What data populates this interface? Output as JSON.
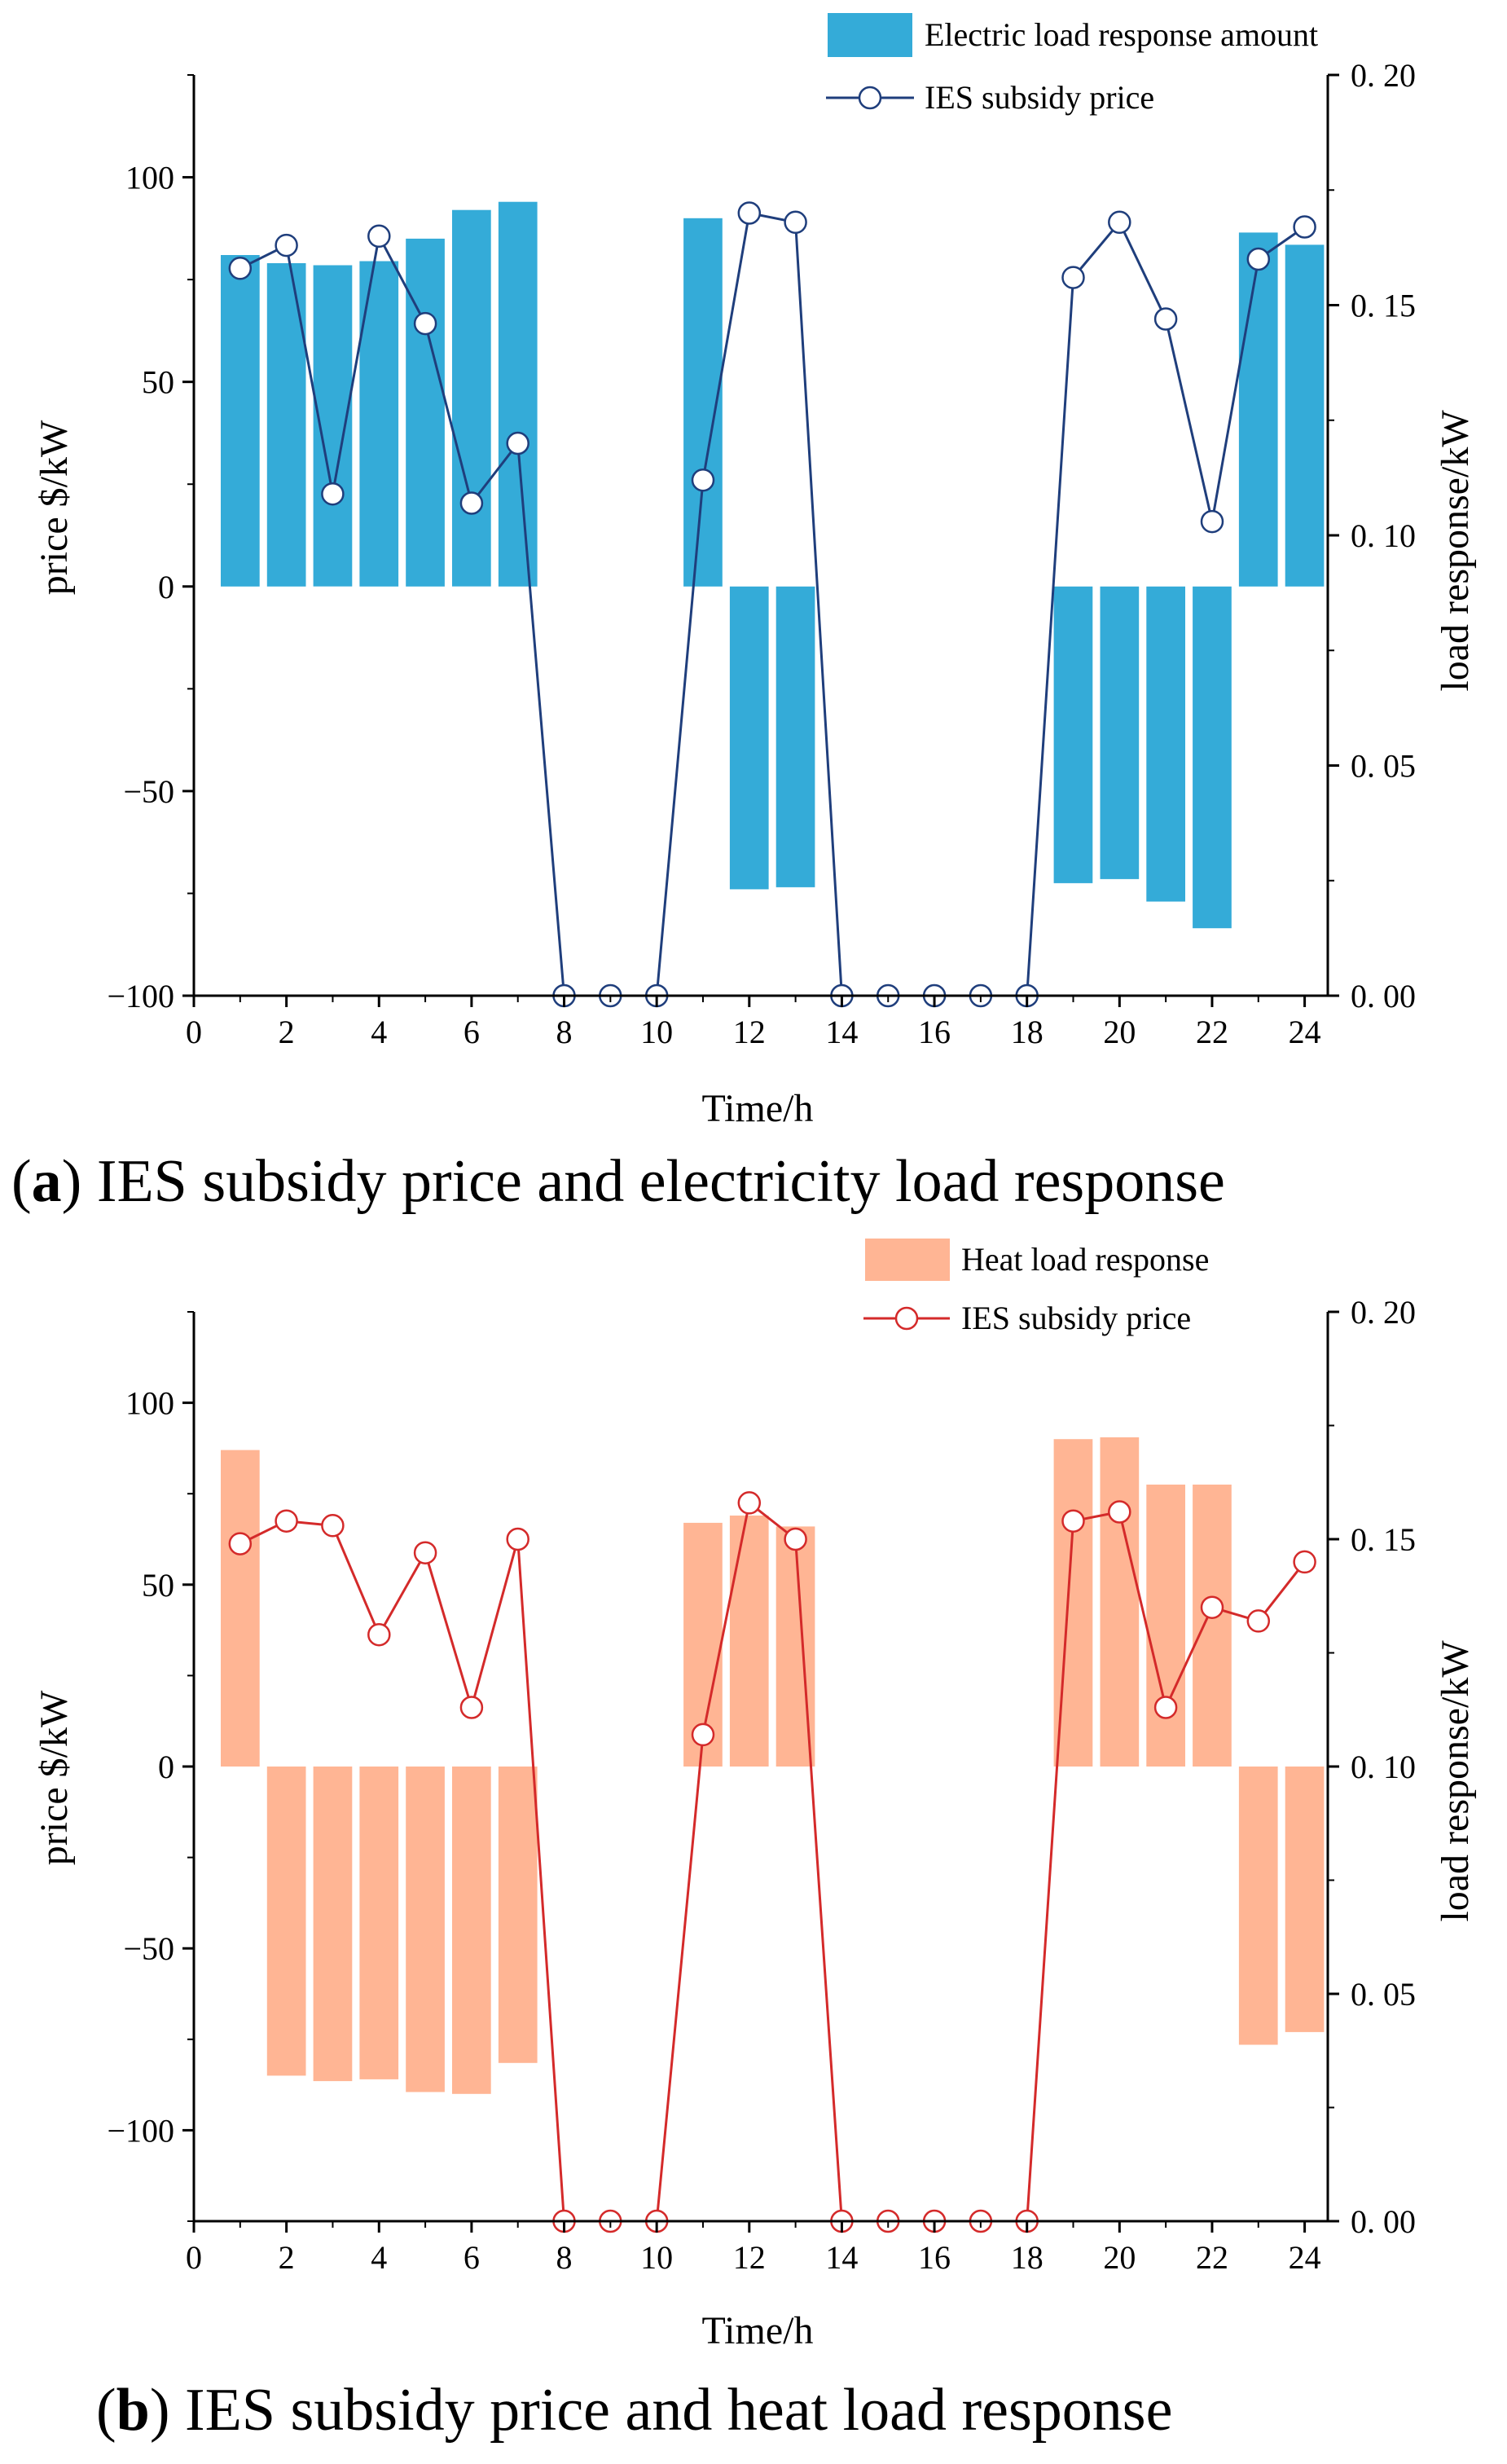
{
  "chart_data": [
    {
      "type": "bar+line",
      "panel": "a",
      "caption_label": "a",
      "caption_open": "(",
      "caption_close": ")",
      "caption_text": " IES subsidy price and electricity load response",
      "xlabel": "Time/h",
      "ylabel_left": "price $/kW",
      "ylabel_right": "load response/kW",
      "xlim": [
        0,
        24.5
      ],
      "ylim_left": [
        -100,
        125
      ],
      "ylim_right": [
        0,
        0.2
      ],
      "x_ticks": [
        "0",
        "2",
        "4",
        "6",
        "8",
        "10",
        "12",
        "14",
        "16",
        "18",
        "20",
        "22",
        "24"
      ],
      "y_left_ticks": [
        "100",
        "50",
        "0",
        "−50",
        "−100"
      ],
      "y_right_ticks": [
        "0. 20",
        "0. 15",
        "0. 10",
        "0. 05",
        "0. 00"
      ],
      "bar_color": "#34ABD8",
      "line_color": "#1F3E7C",
      "legend": [
        {
          "label": "Electric load response amount",
          "kind": "bar"
        },
        {
          "label": "IES subsidy price",
          "kind": "line"
        }
      ],
      "bars": {
        "name": "Electric load response amount",
        "x": [
          1,
          2,
          3,
          4,
          5,
          6,
          7,
          8,
          9,
          10,
          11,
          12,
          13,
          14,
          15,
          16,
          17,
          18,
          19,
          20,
          21,
          22,
          23,
          24
        ],
        "values": [
          81,
          79,
          78.5,
          79.5,
          85,
          92,
          94,
          0,
          0,
          0,
          90,
          -74,
          -73.5,
          0,
          0,
          0,
          0,
          0,
          -72.5,
          -71.5,
          -77,
          -83.5,
          86.5,
          83.5
        ]
      },
      "line": {
        "name": "IES subsidy price",
        "x": [
          1,
          2,
          3,
          4,
          5,
          6,
          7,
          8,
          9,
          10,
          11,
          12,
          13,
          14,
          15,
          16,
          17,
          18,
          19,
          20,
          21,
          22,
          23,
          24
        ],
        "values": [
          0.158,
          0.163,
          0.109,
          0.165,
          0.146,
          0.107,
          0.12,
          0,
          0,
          0,
          0.112,
          0.17,
          0.168,
          0,
          0,
          0,
          0,
          0,
          0.156,
          0.168,
          0.147,
          0.103,
          0.16,
          0.167
        ]
      }
    },
    {
      "type": "bar+line",
      "panel": "b",
      "caption_label": "b",
      "caption_open": "(",
      "caption_close": ")",
      "caption_text": " IES subsidy price and heat load response",
      "xlabel": "Time/h",
      "ylabel_left": "price $/kW",
      "ylabel_right": "load response/kW",
      "xlim": [
        0,
        24.5
      ],
      "ylim_left": [
        -125,
        125
      ],
      "ylim_right": [
        0,
        0.2
      ],
      "x_ticks": [
        "0",
        "2",
        "4",
        "6",
        "8",
        "10",
        "12",
        "14",
        "16",
        "18",
        "20",
        "22",
        "24"
      ],
      "y_left_ticks": [
        "100",
        "50",
        "0",
        "−50",
        "−100"
      ],
      "y_right_ticks": [
        "0. 20",
        "0. 15",
        "0. 10",
        "0. 05",
        "0. 00"
      ],
      "bar_color": "#FFB594",
      "line_color": "#D42A2A",
      "legend": [
        {
          "label": "Heat load response",
          "kind": "bar"
        },
        {
          "label": "IES subsidy price",
          "kind": "line"
        }
      ],
      "bars": {
        "name": "Heat load response",
        "x": [
          1,
          2,
          3,
          4,
          5,
          6,
          7,
          8,
          9,
          10,
          11,
          12,
          13,
          14,
          15,
          16,
          17,
          18,
          19,
          20,
          21,
          22,
          23,
          24
        ],
        "values": [
          87,
          -85,
          -86.5,
          -86,
          -89.5,
          -90,
          -81.5,
          0,
          0,
          0,
          67,
          69,
          66,
          0,
          0,
          0,
          0,
          0,
          90,
          90.5,
          77.5,
          77.5,
          -76.5,
          -73
        ]
      },
      "line": {
        "name": "IES subsidy price",
        "x": [
          1,
          2,
          3,
          4,
          5,
          6,
          7,
          8,
          9,
          10,
          11,
          12,
          13,
          14,
          15,
          16,
          17,
          18,
          19,
          20,
          21,
          22,
          23,
          24
        ],
        "values": [
          0.149,
          0.154,
          0.153,
          0.129,
          0.147,
          0.113,
          0.15,
          0,
          0,
          0,
          0.107,
          0.158,
          0.15,
          0,
          0,
          0,
          0,
          0,
          0.154,
          0.156,
          0.113,
          0.135,
          0.132,
          0.145
        ]
      }
    }
  ]
}
